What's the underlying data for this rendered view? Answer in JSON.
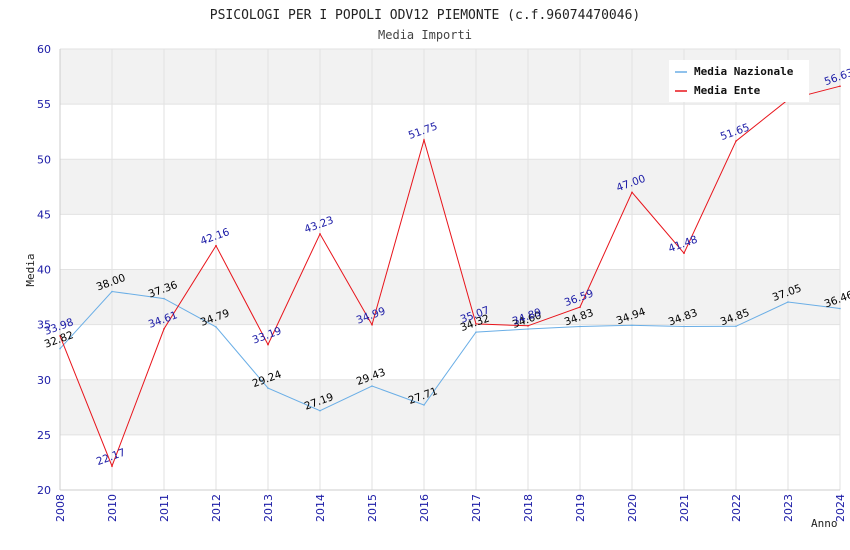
{
  "chart_data": {
    "type": "line",
    "title": "PSICOLOGI PER I POPOLI ODV12 PIEMONTE (c.f.96074470046)",
    "subtitle": "Media Importi",
    "xlabel": "Anno",
    "ylabel": "Media",
    "ylim": [
      20,
      60
    ],
    "yticks": [
      "20",
      "25",
      "30",
      "35",
      "40",
      "45",
      "50",
      "55",
      "60"
    ],
    "x": [
      "2008",
      "2010",
      "2011",
      "2012",
      "2013",
      "2014",
      "2015",
      "2016",
      "2017",
      "2018",
      "2019",
      "2020",
      "2021",
      "2022",
      "2023",
      "2024"
    ],
    "series": [
      {
        "name": "Media Nazionale",
        "color": "#6aaee6",
        "label_color": "#000000",
        "values": [
          32.82,
          38.0,
          37.36,
          34.79,
          29.24,
          27.19,
          29.43,
          27.71,
          34.32,
          34.6,
          34.83,
          34.94,
          34.83,
          34.85,
          37.05,
          36.46
        ],
        "labels": [
          "32.82",
          "38.00",
          "37.36",
          "34.79",
          "29.24",
          "27.19",
          "29.43",
          "27.71",
          "34.32",
          "34.60",
          "34.83",
          "34.94",
          "34.83",
          "34.85",
          "37.05",
          "36.46"
        ]
      },
      {
        "name": "Media Ente",
        "color": "#e8141b",
        "label_color": "#1a1aa6",
        "values": [
          33.98,
          22.17,
          34.61,
          42.16,
          33.19,
          43.23,
          34.99,
          51.75,
          35.07,
          34.89,
          36.59,
          47.0,
          41.48,
          51.65,
          55.4,
          56.63
        ],
        "labels": [
          "33.98",
          "22.17",
          "34.61",
          "42.16",
          "33.19",
          "43.23",
          "34.99",
          "51.75",
          "35.07",
          "34.89",
          "36.59",
          "47.00",
          "41.48",
          "51.65",
          "",
          "56.63"
        ]
      }
    ],
    "legend": {
      "position": "top-right",
      "entries": [
        "Media Nazionale",
        "Media Ente"
      ]
    },
    "grid": true,
    "band_color": "#f2f2f2"
  }
}
